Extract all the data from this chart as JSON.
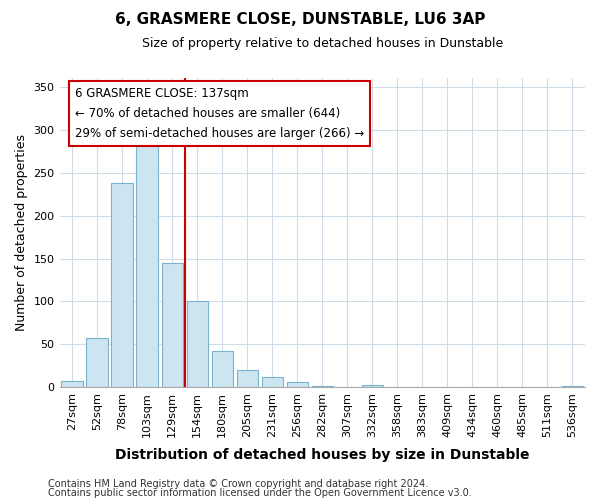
{
  "title": "6, GRASMERE CLOSE, DUNSTABLE, LU6 3AP",
  "subtitle": "Size of property relative to detached houses in Dunstable",
  "xlabel": "Distribution of detached houses by size in Dunstable",
  "ylabel": "Number of detached properties",
  "bar_labels": [
    "27sqm",
    "52sqm",
    "78sqm",
    "103sqm",
    "129sqm",
    "154sqm",
    "180sqm",
    "205sqm",
    "231sqm",
    "256sqm",
    "282sqm",
    "307sqm",
    "332sqm",
    "358sqm",
    "383sqm",
    "409sqm",
    "434sqm",
    "460sqm",
    "485sqm",
    "511sqm",
    "536sqm"
  ],
  "bar_values": [
    8,
    57,
    238,
    291,
    145,
    101,
    42,
    20,
    12,
    6,
    2,
    0,
    3,
    1,
    0,
    0,
    0,
    0,
    0,
    0,
    2
  ],
  "bar_color": "#cce5f0",
  "bar_edge_color": "#7ab3d0",
  "vline_color": "#cc0000",
  "vline_position": 4.5,
  "ylim": [
    0,
    360
  ],
  "yticks": [
    0,
    50,
    100,
    150,
    200,
    250,
    300,
    350
  ],
  "annotation_title": "6 GRASMERE CLOSE: 137sqm",
  "annotation_line1": "← 70% of detached houses are smaller (644)",
  "annotation_line2": "29% of semi-detached houses are larger (266) →",
  "annotation_box_color": "#ffffff",
  "annotation_box_edge": "#cc0000",
  "footer1": "Contains HM Land Registry data © Crown copyright and database right 2024.",
  "footer2": "Contains public sector information licensed under the Open Government Licence v3.0.",
  "background_color": "#ffffff",
  "grid_color": "#d0dde8",
  "title_fontsize": 11,
  "subtitle_fontsize": 9,
  "xlabel_fontsize": 10,
  "ylabel_fontsize": 9,
  "tick_fontsize": 8,
  "annotation_fontsize": 8.5,
  "footer_fontsize": 7
}
